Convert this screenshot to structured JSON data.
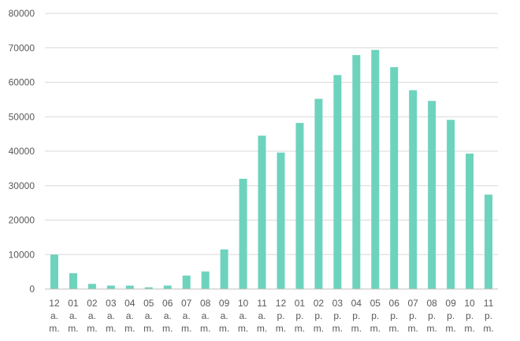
{
  "chart_data": {
    "type": "bar",
    "title": "",
    "xlabel": "",
    "ylabel": "",
    "ylim": [
      0,
      80000
    ],
    "yticks": [
      "0",
      "10000",
      "20000",
      "30000",
      "40000",
      "50000",
      "60000",
      "70000",
      "80000"
    ],
    "grid": true,
    "bar_color": "#6dd3bd",
    "categories": [
      [
        "12",
        "a.",
        "m."
      ],
      [
        "01",
        "a.",
        "m."
      ],
      [
        "02",
        "a.",
        "m."
      ],
      [
        "03",
        "a.",
        "m."
      ],
      [
        "04",
        "a.",
        "m."
      ],
      [
        "05",
        "a.",
        "m."
      ],
      [
        "06",
        "a.",
        "m."
      ],
      [
        "07",
        "a.",
        "m."
      ],
      [
        "08",
        "a.",
        "m."
      ],
      [
        "09",
        "a.",
        "m."
      ],
      [
        "10",
        "a.",
        "m."
      ],
      [
        "11",
        "a.",
        "m."
      ],
      [
        "12",
        "p.",
        "m."
      ],
      [
        "01",
        "p.",
        "m."
      ],
      [
        "02",
        "p.",
        "m."
      ],
      [
        "03",
        "p.",
        "m."
      ],
      [
        "04",
        "p.",
        "m."
      ],
      [
        "05",
        "p.",
        "m."
      ],
      [
        "06",
        "p.",
        "m."
      ],
      [
        "07",
        "p.",
        "m."
      ],
      [
        "08",
        "p.",
        "m."
      ],
      [
        "09",
        "p.",
        "m."
      ],
      [
        "10",
        "p.",
        "m."
      ],
      [
        "11",
        "p.",
        "m."
      ]
    ],
    "values": [
      10000,
      4600,
      1500,
      1000,
      1000,
      500,
      1000,
      3900,
      5100,
      11500,
      32000,
      44500,
      39600,
      48200,
      55200,
      62100,
      67900,
      69400,
      64400,
      57700,
      54600,
      49100,
      39300,
      27400
    ]
  }
}
